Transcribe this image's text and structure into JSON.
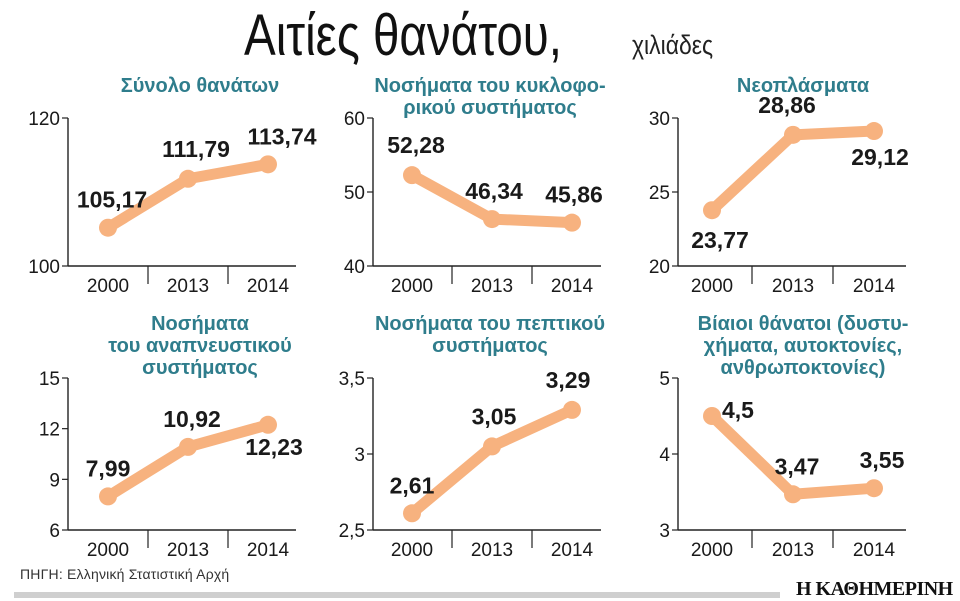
{
  "title": "Αιτίες θανάτου,",
  "unit": "χιλιάδες",
  "source": "ΠΗΓΗ: Ελληνική Στατιστική Αρχή",
  "logo": "Η ΚΑΘΗΜΕΡΙΝΗ",
  "colors": {
    "line": "#f7b27f",
    "title": "#2f7d8c",
    "axis": "#222222",
    "label": "#1a1a1a"
  },
  "chart_data": [
    {
      "type": "line",
      "title_lines": [
        "Σύνολο θανάτων"
      ],
      "categories": [
        "2000",
        "2013",
        "2014"
      ],
      "values": [
        105.17,
        111.79,
        113.74
      ],
      "value_labels": [
        "105,17",
        "111,79",
        "113,74"
      ],
      "ylim": [
        100,
        120
      ],
      "yticks": [
        100,
        120
      ],
      "ytick_labels": [
        "100",
        "120"
      ]
    },
    {
      "type": "line",
      "title_lines": [
        "Νοσήματα του κυκλοφο-",
        "ρικού συστήματος"
      ],
      "categories": [
        "2000",
        "2013",
        "2014"
      ],
      "values": [
        52.28,
        46.34,
        45.86
      ],
      "value_labels": [
        "52,28",
        "46,34",
        "45,86"
      ],
      "ylim": [
        40,
        60
      ],
      "yticks": [
        40,
        50,
        60
      ],
      "ytick_labels": [
        "40",
        "50",
        "60"
      ]
    },
    {
      "type": "line",
      "title_lines": [
        "Νεοπλάσματα"
      ],
      "categories": [
        "2000",
        "2013",
        "2014"
      ],
      "values": [
        23.77,
        28.86,
        29.12
      ],
      "value_labels": [
        "23,77",
        "28,86",
        "29,12"
      ],
      "ylim": [
        20,
        30
      ],
      "yticks": [
        20,
        25,
        30
      ],
      "ytick_labels": [
        "20",
        "25",
        "30"
      ]
    },
    {
      "type": "line",
      "title_lines": [
        "Νοσήματα",
        "του αναπνευστικού",
        "συστήματος"
      ],
      "categories": [
        "2000",
        "2013",
        "2014"
      ],
      "values": [
        7.99,
        10.92,
        12.23
      ],
      "value_labels": [
        "7,99",
        "10,92",
        "12,23"
      ],
      "ylim": [
        6,
        15
      ],
      "yticks": [
        6,
        9,
        12,
        15
      ],
      "ytick_labels": [
        "6",
        "9",
        "12",
        "15"
      ]
    },
    {
      "type": "line",
      "title_lines": [
        "Νοσήματα του πεπτικού",
        "συστήματος"
      ],
      "categories": [
        "2000",
        "2013",
        "2014"
      ],
      "values": [
        2.61,
        3.05,
        3.29
      ],
      "value_labels": [
        "2,61",
        "3,05",
        "3,29"
      ],
      "ylim": [
        2.5,
        3.5
      ],
      "yticks": [
        2.5,
        3,
        3.5
      ],
      "ytick_labels": [
        "2,5",
        "3",
        "3,5"
      ]
    },
    {
      "type": "line",
      "title_lines": [
        "Βίαιοι θάνατοι (δυστυ-",
        "χήματα, αυτοκτονίες,",
        "ανθρωποκτονίες)"
      ],
      "categories": [
        "2000",
        "2013",
        "2014"
      ],
      "values": [
        4.5,
        3.47,
        3.55
      ],
      "value_labels": [
        "4,5",
        "3,47",
        "3,55"
      ],
      "ylim": [
        3,
        5
      ],
      "yticks": [
        3,
        4,
        5
      ],
      "ytick_labels": [
        "3",
        "4",
        "5"
      ]
    }
  ]
}
